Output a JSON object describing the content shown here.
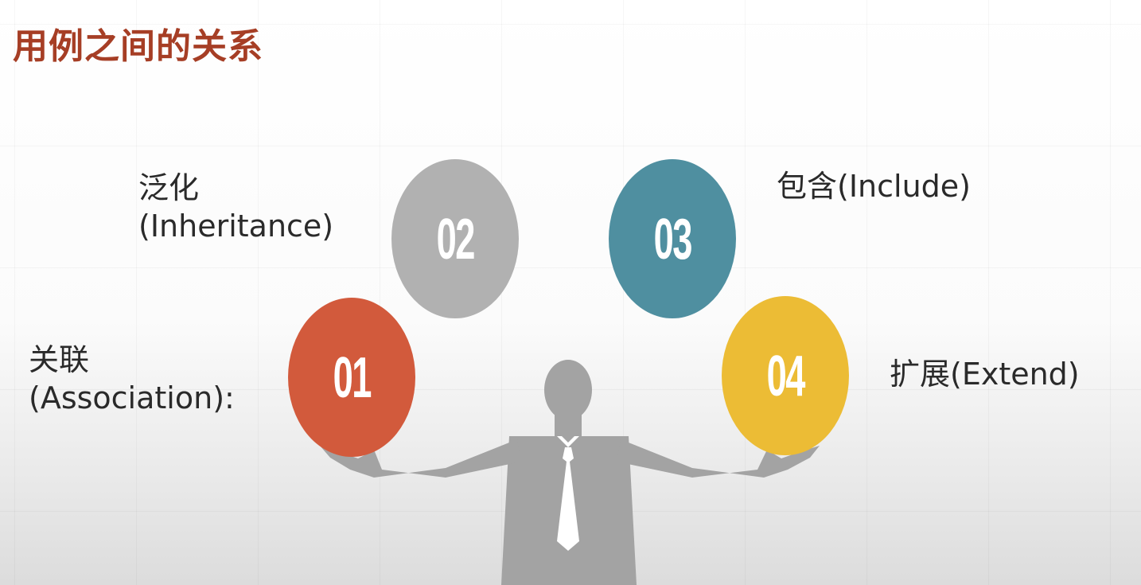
{
  "title": "用例之间的关系",
  "items": [
    {
      "num": "01",
      "line1": "关联",
      "line2": "(Association):",
      "color": "#d25a3c"
    },
    {
      "num": "02",
      "line1": "泛化",
      "line2": "(Inheritance)",
      "color": "#b1b1b1"
    },
    {
      "num": "03",
      "line1": "包含(Include)",
      "line2": "",
      "color": "#4f8fa0"
    },
    {
      "num": "04",
      "line1": "扩展(Extend)",
      "line2": "",
      "color": "#ecbc35"
    }
  ],
  "figure_icon": "businessman-silhouette"
}
